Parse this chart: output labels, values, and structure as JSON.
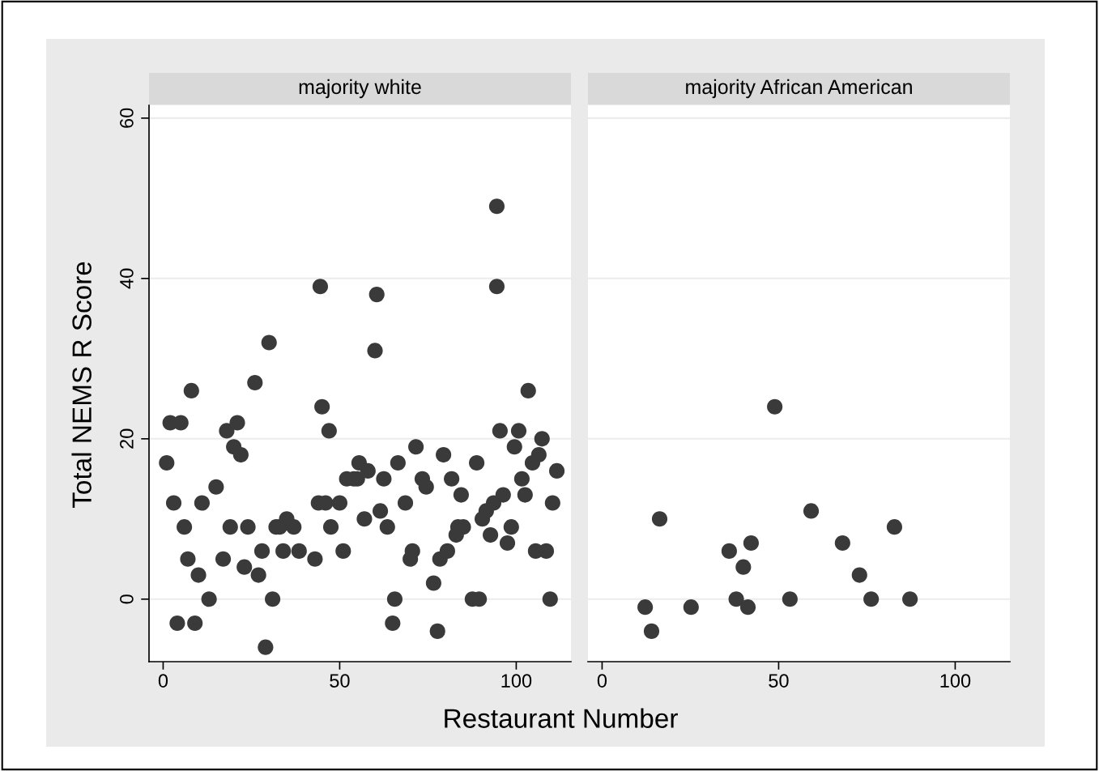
{
  "chart_data": [
    {
      "type": "scatter",
      "title": "majority white",
      "ylabel": "Total NEMS R Score",
      "xlabel": "Restaurant Number",
      "marker": "circle",
      "grid": "y",
      "xlim": [
        -4,
        115.5
      ],
      "ylim": [
        -7.8,
        61.6
      ],
      "xticks": [
        0,
        50,
        100
      ],
      "yticks": [
        0,
        20,
        40,
        60
      ],
      "series": [
        {
          "color": "#3a3a3a",
          "x": [
            1,
            2,
            3,
            4,
            5,
            6,
            7,
            8,
            9,
            10,
            11,
            13,
            15,
            17,
            18,
            19,
            20,
            21,
            22,
            23,
            24,
            26,
            27,
            28,
            29,
            30,
            31,
            32,
            33,
            34,
            35,
            37,
            38.5,
            43,
            44,
            44.5,
            45,
            46,
            47,
            47.5,
            50,
            51,
            52,
            54,
            55,
            55.5,
            57,
            58,
            60,
            60.5,
            61.5,
            62.5,
            63.5,
            65,
            65.6,
            66.5,
            68.6,
            70,
            70.6,
            71.6,
            73.4,
            74.5,
            76.6,
            77.7,
            78.4,
            79.4,
            80.5,
            81.7,
            83,
            83.5,
            84.4,
            85,
            87.6,
            88.8,
            89.5,
            90.4,
            91.5,
            92.7,
            93.6,
            94.5,
            94.5,
            95.4,
            96.3,
            97.5,
            98.6,
            99.5,
            100.7,
            101.6,
            102.5,
            103.4,
            104.6,
            105.5,
            106.4,
            107.3,
            108.5,
            109.6,
            110.3,
            111.5
          ],
          "values": [
            17,
            22,
            12,
            -3,
            22,
            9,
            5,
            26,
            -3,
            3,
            12,
            0,
            14,
            5,
            21,
            9,
            19,
            22,
            18,
            4,
            9,
            27,
            3,
            6,
            -6,
            32,
            0,
            9,
            9,
            6,
            10,
            9,
            6,
            5,
            12,
            39,
            24,
            12,
            21,
            9,
            12,
            6,
            15,
            15,
            15,
            17,
            10,
            16,
            31,
            38,
            11,
            15,
            9,
            -3,
            0,
            17,
            12,
            5,
            6,
            19,
            15,
            14,
            2,
            -4,
            5,
            18,
            6,
            15,
            8,
            9,
            13,
            9,
            0,
            17,
            0,
            10,
            11,
            8,
            12,
            49,
            39,
            21,
            13,
            7,
            9,
            19,
            21,
            15,
            13,
            26,
            17,
            6,
            18,
            20,
            6,
            0,
            12,
            16
          ]
        }
      ]
    },
    {
      "type": "scatter",
      "title": "majority African American",
      "marker": "circle",
      "grid": "y",
      "tick_labels": "x",
      "xlim": [
        -4,
        115.5
      ],
      "ylim": [
        -7.8,
        61.6
      ],
      "xticks": [
        0,
        50,
        100
      ],
      "yticks": [
        0,
        20,
        40,
        60
      ],
      "series": [
        {
          "color": "#3a3a3a",
          "x": [
            12.2,
            14,
            16.3,
            25.2,
            36,
            38,
            40,
            41.3,
            42.2,
            48.9,
            53.2,
            59.2,
            68.1,
            72.9,
            76.2,
            82.8,
            87.2
          ],
          "values": [
            -1,
            -4,
            10,
            -1,
            6,
            0,
            4,
            -1,
            7,
            24,
            0,
            11,
            7,
            3,
            0,
            9,
            0
          ]
        }
      ]
    }
  ]
}
